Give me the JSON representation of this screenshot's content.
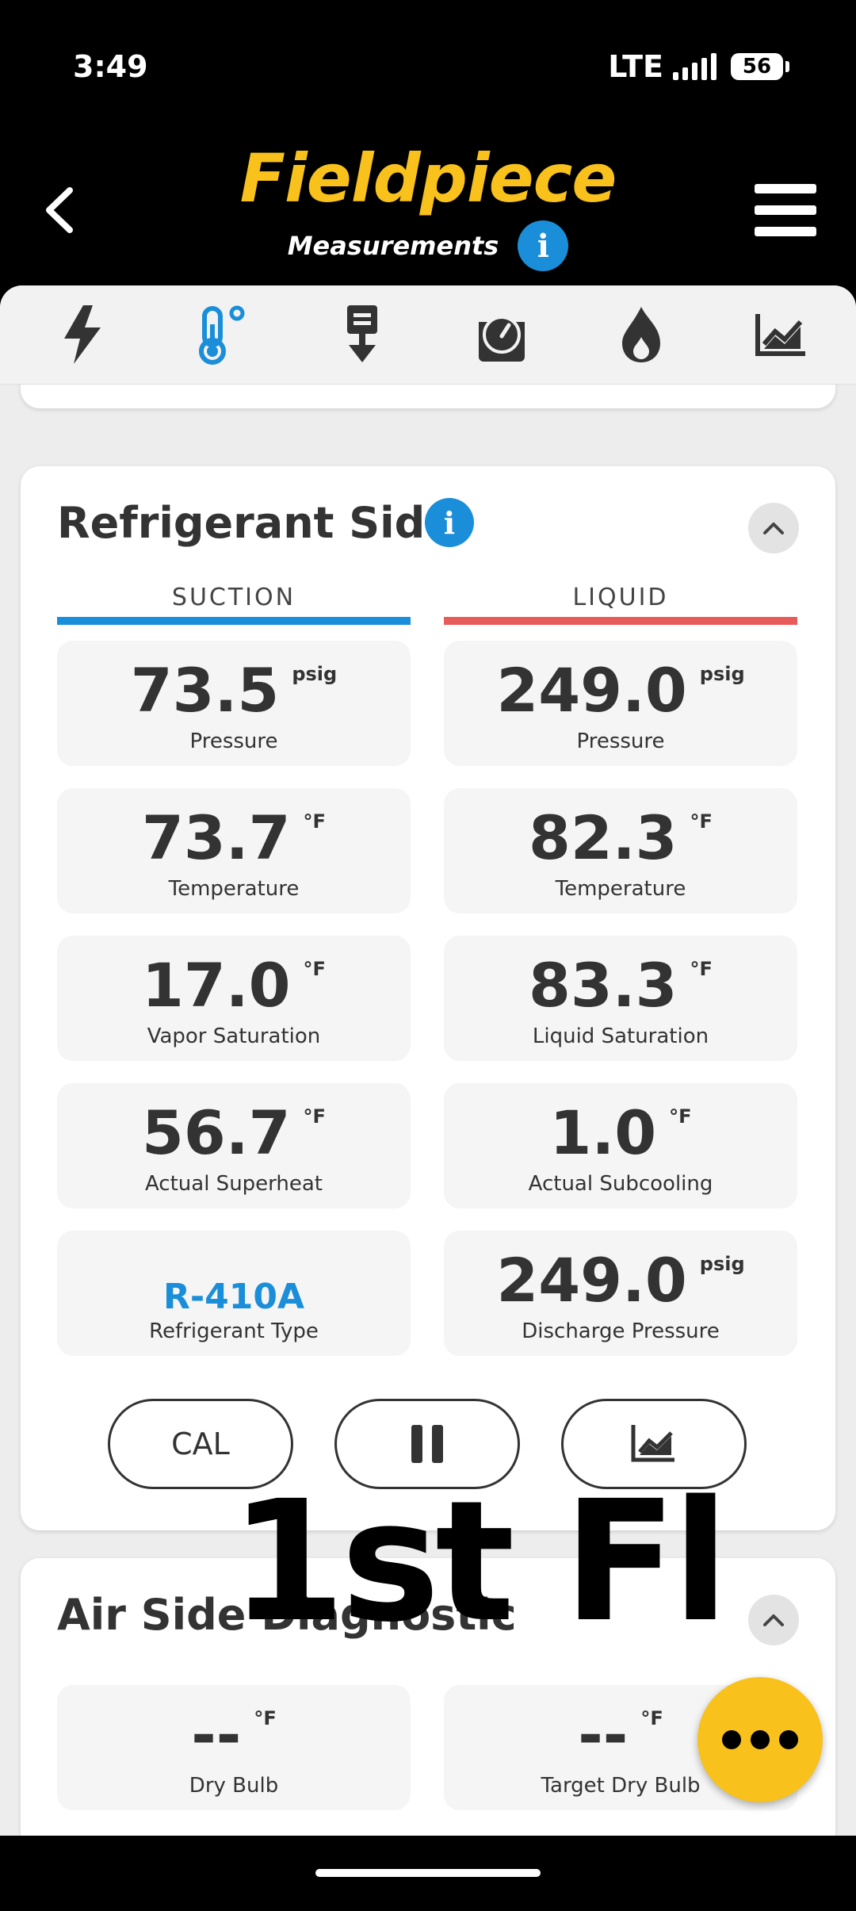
{
  "status_bar": {
    "time": "3:49",
    "network": "LTE",
    "battery": "56"
  },
  "header": {
    "brand": "Fieldpiece",
    "subtitle": "Measurements"
  },
  "tabs": [
    {
      "icon": "lightning-icon"
    },
    {
      "icon": "thermometer-icon",
      "active": true
    },
    {
      "icon": "airflow-icon"
    },
    {
      "icon": "gauge-icon"
    },
    {
      "icon": "flame-icon"
    },
    {
      "icon": "chart-icon"
    }
  ],
  "refrigerant": {
    "title": "Refrigerant Side",
    "suction_label": "SUCTION",
    "liquid_label": "LIQUID",
    "suction_color": "#1A8ED8",
    "liquid_color": "#E85B5B",
    "suction": [
      {
        "value": "73.5",
        "unit": "psig",
        "label": "Pressure"
      },
      {
        "value": "73.7",
        "unit": "°F",
        "label": "Temperature"
      },
      {
        "value": "17.0",
        "unit": "°F",
        "label": "Vapor Saturation"
      },
      {
        "value": "56.7",
        "unit": "°F",
        "label": "Actual Superheat"
      },
      {
        "value": "R-410A",
        "label": "Refrigerant Type"
      }
    ],
    "liquid": [
      {
        "value": "249.0",
        "unit": "psig",
        "label": "Pressure"
      },
      {
        "value": "82.3",
        "unit": "°F",
        "label": "Temperature"
      },
      {
        "value": "83.3",
        "unit": "°F",
        "label": "Liquid Saturation"
      },
      {
        "value": "1.0",
        "unit": "°F",
        "label": "Actual Subcooling"
      },
      {
        "value": "249.0",
        "unit": "psig",
        "label": "Discharge Pressure"
      }
    ],
    "buttons": {
      "cal": "CAL"
    }
  },
  "air_side": {
    "title": "Air Side Diagnostic",
    "tiles": [
      {
        "value": "--",
        "unit": "°F",
        "label": "Dry Bulb"
      },
      {
        "value": "--",
        "unit": "°F",
        "label": "Target Dry Bulb"
      }
    ]
  },
  "overlay": {
    "text": "1st Fl"
  },
  "colors": {
    "brand": "#F8C11B",
    "accent": "#1A8ED8"
  }
}
